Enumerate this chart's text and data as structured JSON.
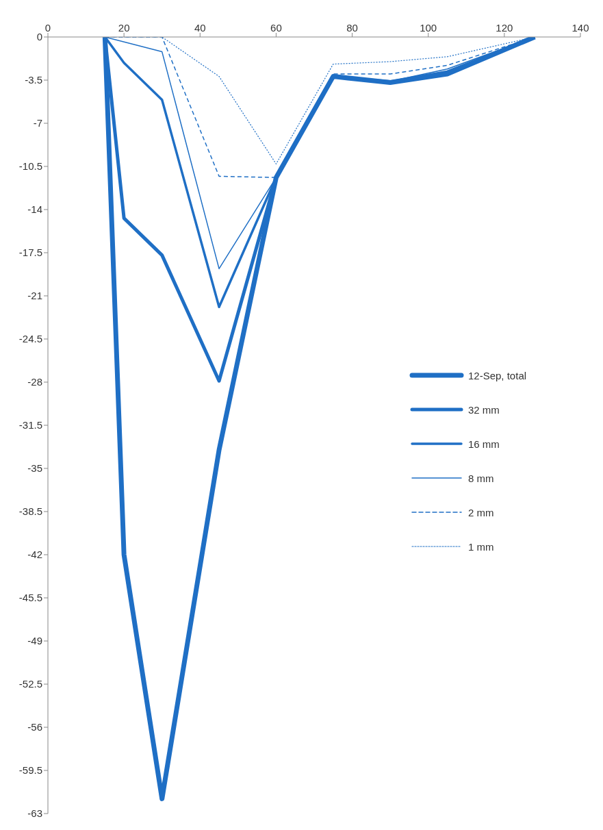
{
  "chart_data": {
    "type": "line",
    "xlim": [
      0,
      140
    ],
    "xticks": [
      0,
      20,
      40,
      60,
      80,
      100,
      120,
      140
    ],
    "ylim": [
      -63,
      0
    ],
    "yticks": [
      0,
      -3.5,
      -7,
      -10.5,
      -14,
      -17.5,
      -21,
      -24.5,
      -28,
      -31.5,
      -35,
      -38.5,
      -42,
      -45.5,
      -49,
      -52.5,
      -56,
      -59.5,
      -63
    ],
    "grid": false,
    "legend": "right",
    "marker": "none",
    "series": [
      {
        "name": "12-Sep, total",
        "color": "#1f6fc5",
        "line_style": "solid",
        "x": [
          15,
          20,
          30,
          45,
          60,
          75,
          90,
          105,
          128
        ],
        "values": [
          0,
          -42,
          -61.8,
          -33.5,
          -11.4,
          -3.2,
          -3.7,
          -3.0,
          0
        ]
      },
      {
        "name": "32 mm",
        "color": "#1f6fc5",
        "line_style": "solid",
        "x": [
          15,
          20,
          30,
          45,
          60,
          75,
          90,
          105,
          128
        ],
        "values": [
          0,
          -14.7,
          -17.7,
          -27.9,
          -11.4,
          -3.2,
          -3.7,
          -3.0,
          0
        ]
      },
      {
        "name": "16 mm",
        "color": "#1f6fc5",
        "line_style": "solid",
        "x": [
          15,
          20,
          30,
          45,
          60,
          75,
          90,
          105,
          128
        ],
        "values": [
          0,
          -2.1,
          -5.1,
          -21.9,
          -11.4,
          -3.2,
          -3.6,
          -2.8,
          0
        ]
      },
      {
        "name": "8 mm",
        "color": "#1f6fc5",
        "line_style": "solid",
        "x": [
          15,
          30,
          45,
          60,
          75,
          90,
          105,
          128
        ],
        "values": [
          0,
          -1.2,
          -18.8,
          -11.4,
          -3.2,
          -3.6,
          -2.6,
          0
        ]
      },
      {
        "name": "2 mm",
        "color": "#1f6fc5",
        "line_style": "dashed",
        "x": [
          15,
          30,
          45,
          60,
          75,
          90,
          105,
          128
        ],
        "values": [
          0,
          0,
          -11.3,
          -11.4,
          -3.0,
          -3.0,
          -2.3,
          0
        ]
      },
      {
        "name": "1 mm",
        "color": "#1f6fc5",
        "line_style": "dotted",
        "x": [
          15,
          30,
          45,
          60,
          75,
          90,
          105,
          128
        ],
        "values": [
          0,
          0,
          -3.2,
          -10.3,
          -2.2,
          -2.0,
          -1.6,
          0
        ]
      }
    ]
  }
}
